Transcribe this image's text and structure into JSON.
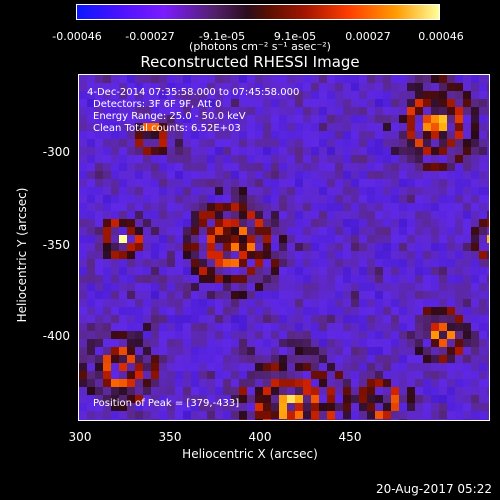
{
  "colorbar": {
    "ticks": [
      "-0.00046",
      "-0.00027",
      "-9.1e-05",
      "9.1e-05",
      "0.00027",
      "0.00046"
    ],
    "units": "(photons cm⁻² s⁻¹ asec⁻²)"
  },
  "title": "Reconstructed RHESSI Image",
  "annotations": {
    "time": "4-Dec-2014 07:35:58.000 to 07:45:58.000",
    "detectors": "Detectors: 3F 6F 9F, Att 0",
    "energy": "Energy Range: 25.0 - 50.0 keV",
    "clean": "Clean     Total counts: 6.52E+03",
    "peak": "Position of Peak = [379,-433]"
  },
  "axes": {
    "x_label": "Heliocentric X (arcsec)",
    "y_label": "Heliocentric Y (arcsec)",
    "x_ticks": [
      "300",
      "350",
      "400",
      "450"
    ],
    "y_ticks": [
      "-300",
      "-350",
      "-400"
    ]
  },
  "footer_date": "20-Aug-2017 05:22"
}
